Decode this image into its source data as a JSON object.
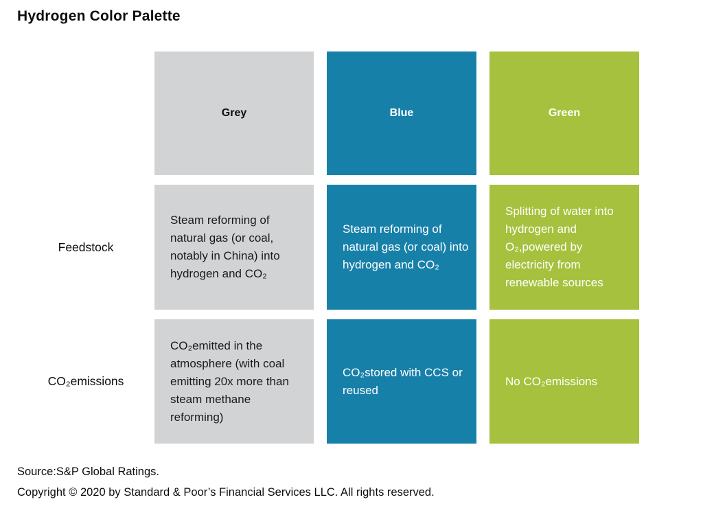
{
  "title": "Hydrogen Color Palette",
  "chart_data": {
    "type": "table",
    "title": "Hydrogen Color Palette",
    "columns": [
      {
        "id": "grey",
        "label": "Grey",
        "color": "#d2d3d4",
        "text_color": "#1a1a1a",
        "header_text_color": "#0d0d0d"
      },
      {
        "id": "blue",
        "label": "Blue",
        "color": "#1780a9",
        "text_color": "#ffffff",
        "header_text_color": "#ffffff"
      },
      {
        "id": "green",
        "label": "Green",
        "color": "#a6c13d",
        "text_color": "#ffffff",
        "header_text_color": "#ffffff"
      }
    ],
    "rows": [
      {
        "label": "Feedstock",
        "cells": {
          "grey": "Steam reforming of natural gas (or coal, notably in China) into hydrogen and CO₂",
          "blue": "Steam reforming of natural gas (or coal) into hydrogen and CO₂",
          "green": "Splitting of water into hydrogen and O₂,powered by electricity from renewable sources"
        }
      },
      {
        "label": "CO₂emissions",
        "cells": {
          "grey": "CO₂emitted in the atmosphere (with coal emitting 20x more than steam methane reforming)",
          "blue": "CO₂stored with CCS or reused",
          "green": "No CO₂emissions"
        }
      }
    ]
  },
  "footer": {
    "source": "Source:S&P Global Ratings.",
    "copyright": "Copyright © 2020 by Standard & Poor’s Financial Services LLC. All rights reserved."
  }
}
